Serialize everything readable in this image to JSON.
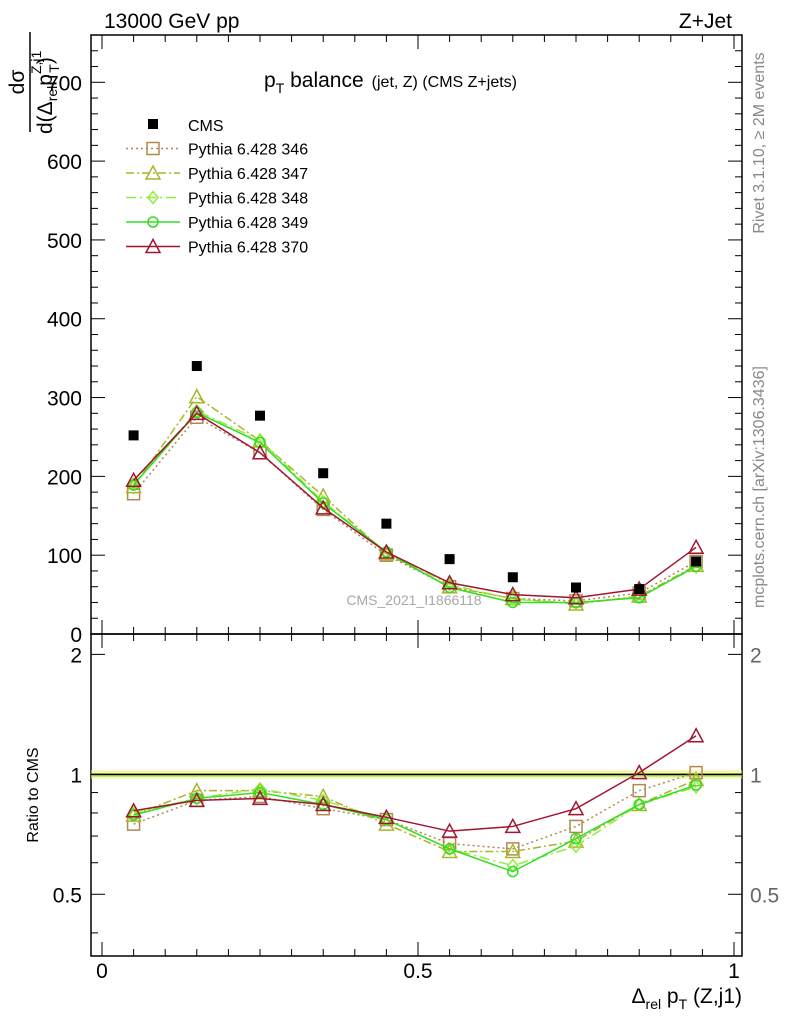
{
  "header": {
    "left": "13000 GeV pp",
    "right": "Z+Jet"
  },
  "chart_data": {
    "type": "line",
    "title_main": "p",
    "title_main_sub": "T",
    "title_rest": " balance",
    "title_small": "(jet, Z) (CMS Z+jets)",
    "ylabel_top_num": "dσ",
    "ylabel_top_den_d": "d(Δ",
    "ylabel_top_den_rel": "rel",
    "ylabel_top_den_p": "p",
    "ylabel_top_den_sup": "Z,j1",
    "ylabel_top_den_sub": "T",
    "ylabel_top_den_close": ")",
    "ylabel_bottom": "Ratio to CMS",
    "xlabel_delta": "Δ",
    "xlabel_rel": "rel",
    "xlabel_p": " p",
    "xlabel_T": "T",
    "xlabel_rest": " (Z,j1)",
    "side_label_top": "Rivet 3.1.10, ≥ 2M events",
    "side_label_bottom": "mcplots.cern.ch [arXiv:1306.3436]",
    "watermark": "CMS_2021_I1866118",
    "xlim": [
      0,
      1
    ],
    "ylim_top": [
      0,
      760
    ],
    "ylim_bottom": [
      0.35,
      2.25
    ],
    "x_ticks": [
      "0",
      "0.5",
      "1"
    ],
    "y_ticks_top": [
      "0",
      "100",
      "200",
      "300",
      "400",
      "500",
      "600",
      "700"
    ],
    "y_ticks_bottom": [
      "0.5",
      "1",
      "2"
    ],
    "x": [
      0.05,
      0.15,
      0.25,
      0.35,
      0.45,
      0.55,
      0.65,
      0.75,
      0.85,
      0.94
    ],
    "data": {
      "name": "CMS",
      "values": [
        252,
        340,
        277,
        204,
        140,
        95,
        72,
        59,
        57,
        92
      ]
    },
    "series": [
      {
        "name": "Pythia 6.428 346",
        "color": "#b08850",
        "dash": "2,3",
        "marker": "square",
        "values": [
          178,
          275,
          230,
          158,
          100,
          60,
          45,
          42,
          52,
          92
        ],
        "ratio": [
          0.75,
          0.86,
          0.88,
          0.82,
          0.77,
          0.67,
          0.65,
          0.74,
          0.91,
          1.01
        ]
      },
      {
        "name": "Pythia 6.428 347",
        "color": "#aab42a",
        "dash": "8,3,2,3",
        "marker": "triangle",
        "values": [
          187,
          301,
          245,
          175,
          102,
          60,
          45,
          38,
          48,
          87
        ],
        "ratio": [
          0.79,
          0.91,
          0.91,
          0.88,
          0.75,
          0.64,
          0.64,
          0.68,
          0.84,
          0.97
        ]
      },
      {
        "name": "Pythia 6.428 348",
        "color": "#90ee3a",
        "dash": "10,4,2,4",
        "marker": "diamond",
        "values": [
          190,
          283,
          246,
          168,
          104,
          63,
          44,
          39,
          47,
          85
        ],
        "ratio": [
          0.8,
          0.87,
          0.92,
          0.86,
          0.77,
          0.65,
          0.59,
          0.66,
          0.84,
          0.93
        ]
      },
      {
        "name": "Pythia 6.428 349",
        "color": "#33dd22",
        "dash": "",
        "marker": "circle",
        "values": [
          189,
          281,
          243,
          166,
          104,
          59,
          40,
          40,
          46,
          86
        ],
        "ratio": [
          0.79,
          0.87,
          0.9,
          0.84,
          0.77,
          0.65,
          0.57,
          0.69,
          0.84,
          0.94
        ]
      },
      {
        "name": "Pythia 6.428 370",
        "color": "#a01530",
        "dash": "",
        "marker": "triangle",
        "values": [
          195,
          280,
          230,
          160,
          104,
          65,
          50,
          46,
          57,
          110
        ],
        "ratio": [
          0.81,
          0.86,
          0.87,
          0.84,
          0.78,
          0.72,
          0.74,
          0.82,
          1.01,
          1.25
        ]
      }
    ]
  }
}
